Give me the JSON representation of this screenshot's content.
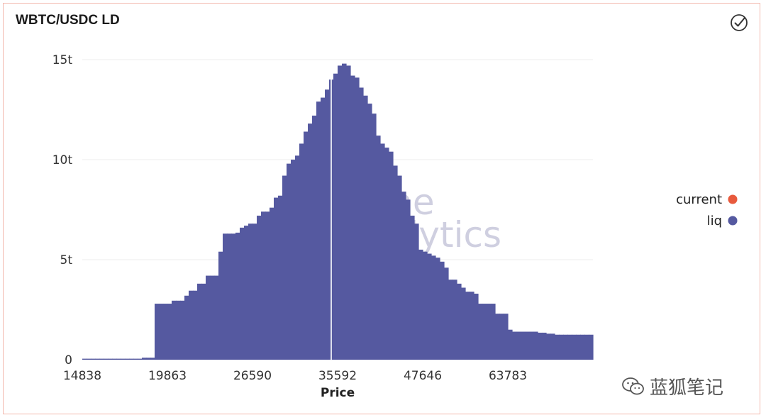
{
  "header": {
    "title": "WBTC/USDC LD"
  },
  "toolbar": {
    "icon": "check-circle-icon"
  },
  "chart_data": {
    "type": "bar",
    "title": "WBTC/USDC LD",
    "xlabel": "Price",
    "ylabel": "",
    "ylim": [
      0,
      15
    ],
    "yticks": [
      "0",
      "5t",
      "10t",
      "15t"
    ],
    "xticks": [
      {
        "label": "14838",
        "index": 0
      },
      {
        "label": "19863",
        "index": 20
      },
      {
        "label": "26590",
        "index": 40
      },
      {
        "label": "35592",
        "index": 60
      },
      {
        "label": "47646",
        "index": 80
      },
      {
        "label": "63783",
        "index": 100
      }
    ],
    "current_index": 58,
    "series": [
      {
        "name": "liq",
        "color": "#5559a0",
        "values": [
          0.05,
          0.05,
          0.05,
          0.05,
          0.05,
          0.05,
          0.05,
          0.05,
          0.05,
          0.05,
          0.05,
          0.05,
          0.05,
          0.05,
          0.1,
          0.1,
          0.1,
          2.8,
          2.8,
          2.8,
          2.8,
          2.95,
          2.95,
          2.95,
          3.2,
          3.45,
          3.45,
          3.8,
          3.8,
          4.2,
          4.2,
          4.2,
          5.4,
          6.3,
          6.3,
          6.3,
          6.35,
          6.6,
          6.7,
          6.8,
          6.8,
          7.2,
          7.4,
          7.4,
          7.6,
          8.1,
          8.2,
          9.2,
          9.8,
          10.0,
          10.2,
          10.8,
          11.4,
          11.8,
          12.2,
          12.9,
          13.1,
          13.5,
          14.0,
          14.3,
          14.7,
          14.8,
          14.7,
          14.2,
          14.1,
          13.6,
          13.2,
          12.8,
          12.3,
          11.2,
          10.8,
          10.6,
          10.4,
          9.7,
          9.2,
          8.4,
          8.0,
          7.2,
          6.8,
          5.5,
          5.4,
          5.3,
          5.2,
          5.1,
          4.9,
          4.6,
          4.0,
          4.0,
          3.8,
          3.6,
          3.4,
          3.4,
          3.3,
          2.8,
          2.8,
          2.8,
          2.8,
          2.3,
          2.3,
          2.3,
          1.5,
          1.4,
          1.4,
          1.4,
          1.4,
          1.4,
          1.4,
          1.35,
          1.35,
          1.3,
          1.3,
          1.25,
          1.25,
          1.25,
          1.25,
          1.25,
          1.25,
          1.25,
          1.25,
          1.25
        ]
      },
      {
        "name": "current",
        "color": "#e85a3d",
        "values": []
      }
    ],
    "legend": [
      {
        "label": "current",
        "color": "#e85a3d"
      },
      {
        "label": "liq",
        "color": "#5559a0"
      }
    ],
    "grid": true,
    "legend_position": "right"
  },
  "watermark": {
    "line1": "Dune",
    "line2": "Analytics"
  },
  "footer": {
    "wechat_label": "蓝狐笔记",
    "icon": "wechat-icon"
  }
}
